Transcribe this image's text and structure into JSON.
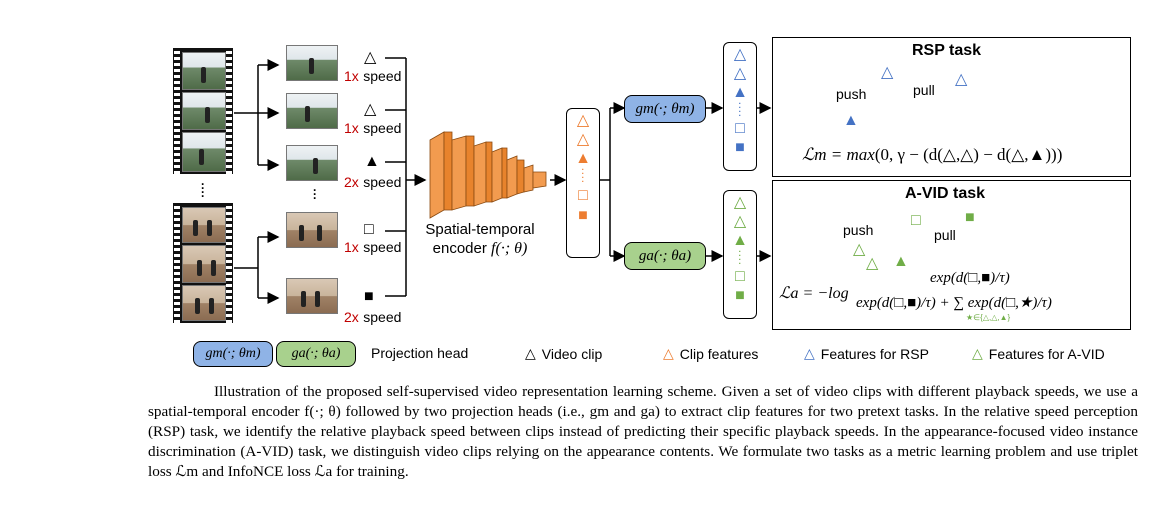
{
  "speeds": [
    {
      "num": "1x",
      "label": "speed",
      "symbol": "△"
    },
    {
      "num": "1x",
      "label": "speed",
      "symbol": "△"
    },
    {
      "num": "2x",
      "label": "speed",
      "symbol": "▲"
    },
    {
      "num": "1x",
      "label": "speed",
      "symbol": "□"
    },
    {
      "num": "2x",
      "label": "speed",
      "symbol": "■"
    }
  ],
  "encoder": {
    "line1": "Spatial-temporal",
    "line2": "encoder",
    "fn": "f(·; θ)"
  },
  "heads": {
    "gm": "gm(·; θm)",
    "ga": "ga(·; θa)"
  },
  "rsp": {
    "title": "RSP task",
    "push": "push",
    "pull": "pull",
    "loss_lhs": "ℒm = max",
    "loss_rhs": "(0, γ − (d(△,△) − d(△,▲)))"
  },
  "avid": {
    "title": "A-VID task",
    "push": "push",
    "pull": "pull",
    "loss_lhs": "ℒa = −log",
    "numerator": "exp(d(□,■)/τ)",
    "denominator": "exp(d(□,■)/τ) + ∑ exp(d(□,★)/τ)",
    "sum_sub": "★∈{△,△,▲}"
  },
  "legend": {
    "head_gm": "gm(·; θm)",
    "head_ga": "ga(·; θa)",
    "projection_head": "Projection head",
    "video_clip": "Video clip",
    "clip_features": "Clip features",
    "features_rsp": "Features for RSP",
    "features_avid": "Features for A-VID"
  },
  "caption": "Illustration of the proposed self-supervised video representation learning scheme. Given a set of video clips with different playback speeds, we use a spatial-temporal encoder f(·; θ) followed by two projection heads (i.e., gm and ga) to extract clip features for two pretext tasks. In the relative speed perception (RSP) task, we identify the relative playback speed between clips instead of predicting their specific playback speeds. In the appearance-focused video instance discrimination (A-VID) task, we distinguish video clips relying on the appearance contents. We formulate two tasks as a metric learning problem and use triplet loss ℒm and InfoNCE loss ℒa for training.",
  "colors": {
    "orange": "#ed7d31",
    "blue": "#4472c4",
    "green": "#70ad47",
    "red": "#c00000",
    "blue_head": "#8fb3e6",
    "green_head": "#a8d18d"
  }
}
